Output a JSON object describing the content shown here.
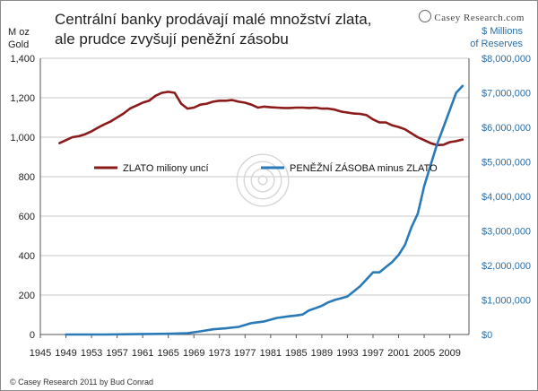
{
  "title_line1": "Centrální banky prodávají malé množství zlata,",
  "title_line2": "ale prudce zvyšují peněžní zásobu",
  "brand": "Casey Research.com",
  "left_axis_label": [
    "M oz",
    "Gold"
  ],
  "right_axis_label": [
    "$ Millions",
    "of Reserves"
  ],
  "copyright": "© Casey Research 2011 by Bud Conrad",
  "colors": {
    "gold": "#8b1a1a",
    "money": "#2a7ab8",
    "grid": "#c8c8c8",
    "right_ticks": "#2a6fa8"
  },
  "chart_data": {
    "type": "line",
    "x_ticks": [
      "1945",
      "1949",
      "1953",
      "1957",
      "1961",
      "1965",
      "1969",
      "1973",
      "1977",
      "1981",
      "1985",
      "1989",
      "1993",
      "1997",
      "2001",
      "2005",
      "2009"
    ],
    "xlim": [
      1945,
      2012
    ],
    "left_axis": {
      "ylim": [
        0,
        1400
      ],
      "ticks": [
        "0",
        "200",
        "400",
        "600",
        "800",
        "1,000",
        "1,200",
        "1,400"
      ]
    },
    "right_axis": {
      "ylim": [
        0,
        8000000
      ],
      "ticks": [
        "$0",
        "$1,000,000",
        "$2,000,000",
        "$3,000,000",
        "$4,000,000",
        "$5,000,000",
        "$6,000,000",
        "$7,000,000",
        "$8,000,000"
      ]
    },
    "grid": "horizontal",
    "legend": "center-left",
    "series": [
      {
        "name": "ZLATO miliony uncí",
        "axis": "left",
        "color": "#8b1a1a",
        "x": [
          1948,
          1949,
          1950,
          1951,
          1952,
          1953,
          1954,
          1955,
          1956,
          1957,
          1958,
          1959,
          1960,
          1961,
          1962,
          1963,
          1964,
          1965,
          1966,
          1967,
          1968,
          1969,
          1970,
          1971,
          1972,
          1973,
          1974,
          1975,
          1976,
          1977,
          1978,
          1979,
          1980,
          1981,
          1982,
          1983,
          1984,
          1985,
          1986,
          1987,
          1988,
          1989,
          1990,
          1991,
          1992,
          1993,
          1994,
          1995,
          1996,
          1997,
          1998,
          1999,
          2000,
          2001,
          2002,
          2003,
          2004,
          2005,
          2006,
          2007,
          2008,
          2009,
          2010,
          2011
        ],
        "values": [
          970,
          985,
          1000,
          1005,
          1015,
          1030,
          1048,
          1065,
          1080,
          1100,
          1120,
          1145,
          1160,
          1175,
          1185,
          1210,
          1225,
          1230,
          1225,
          1170,
          1145,
          1150,
          1165,
          1170,
          1180,
          1185,
          1185,
          1188,
          1180,
          1175,
          1165,
          1150,
          1155,
          1152,
          1150,
          1148,
          1148,
          1150,
          1150,
          1148,
          1150,
          1145,
          1145,
          1140,
          1130,
          1125,
          1120,
          1118,
          1112,
          1090,
          1075,
          1075,
          1060,
          1052,
          1040,
          1020,
          1000,
          985,
          970,
          960,
          962,
          975,
          980,
          988
        ]
      },
      {
        "name": "PENĚŽNÍ ZÁSOBA minus ZLATO",
        "axis": "right",
        "color": "#2a7ab8",
        "x": [
          1949,
          1955,
          1960,
          1965,
          1968,
          1970,
          1972,
          1974,
          1976,
          1978,
          1980,
          1982,
          1984,
          1985,
          1986,
          1987,
          1988,
          1989,
          1990,
          1991,
          1992,
          1993,
          1994,
          1995,
          1996,
          1997,
          1998,
          1999,
          2000,
          2001,
          2002,
          2003,
          2004,
          2005,
          2006,
          2007,
          2008,
          2009,
          2010,
          2011
        ],
        "values": [
          0,
          0,
          10000,
          20000,
          40000,
          90000,
          150000,
          180000,
          220000,
          330000,
          380000,
          480000,
          530000,
          550000,
          580000,
          700000,
          760000,
          830000,
          930000,
          1000000,
          1050000,
          1100000,
          1250000,
          1400000,
          1600000,
          1800000,
          1800000,
          1950000,
          2100000,
          2300000,
          2600000,
          3100000,
          3500000,
          4300000,
          4900000,
          5500000,
          6000000,
          6500000,
          7000000,
          7200000
        ]
      }
    ]
  }
}
